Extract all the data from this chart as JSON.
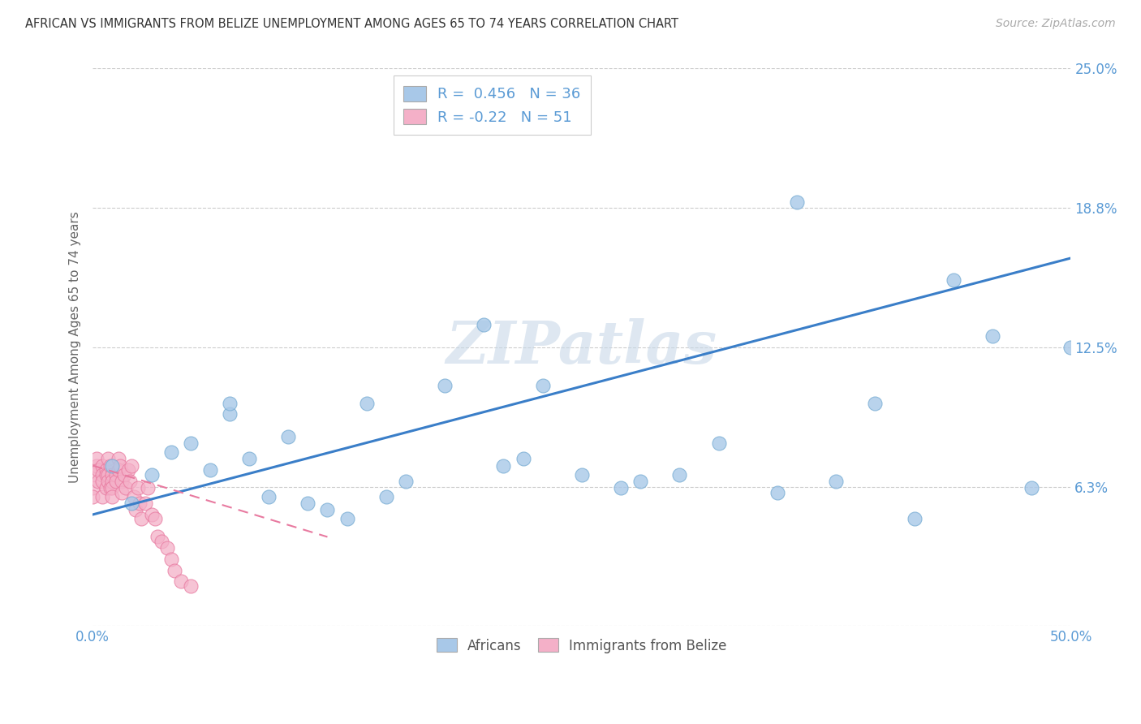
{
  "title": "AFRICAN VS IMMIGRANTS FROM BELIZE UNEMPLOYMENT AMONG AGES 65 TO 74 YEARS CORRELATION CHART",
  "source": "Source: ZipAtlas.com",
  "ylabel": "Unemployment Among Ages 65 to 74 years",
  "xlim": [
    0.0,
    0.5
  ],
  "ylim": [
    0.0,
    0.25
  ],
  "xticks": [
    0.0,
    0.1,
    0.2,
    0.3,
    0.4,
    0.5
  ],
  "xticklabels": [
    "0.0%",
    "",
    "",
    "",
    "",
    "50.0%"
  ],
  "yticks": [
    0.0,
    0.0625,
    0.125,
    0.1875,
    0.25
  ],
  "yticklabels": [
    "",
    "6.3%",
    "12.5%",
    "18.8%",
    "25.0%"
  ],
  "watermark": "ZIPatlas",
  "blue_R": 0.456,
  "blue_N": 36,
  "pink_R": -0.22,
  "pink_N": 51,
  "blue_color": "#a8c8e8",
  "pink_color": "#f4b0c8",
  "blue_edge_color": "#7aaed4",
  "pink_edge_color": "#e87aa0",
  "blue_line_color": "#3a7ec8",
  "pink_line_color": "#e87aa0",
  "tick_color": "#5b9bd5",
  "grid_color": "#cccccc",
  "title_color": "#333333",
  "africans_x": [
    0.01,
    0.02,
    0.03,
    0.04,
    0.05,
    0.06,
    0.07,
    0.07,
    0.08,
    0.09,
    0.1,
    0.11,
    0.12,
    0.13,
    0.14,
    0.15,
    0.16,
    0.18,
    0.2,
    0.21,
    0.22,
    0.23,
    0.25,
    0.27,
    0.28,
    0.3,
    0.32,
    0.35,
    0.38,
    0.4,
    0.42,
    0.44,
    0.46,
    0.48,
    0.36,
    0.5
  ],
  "africans_y": [
    0.072,
    0.055,
    0.068,
    0.078,
    0.082,
    0.07,
    0.095,
    0.1,
    0.075,
    0.058,
    0.085,
    0.055,
    0.052,
    0.048,
    0.1,
    0.058,
    0.065,
    0.108,
    0.135,
    0.072,
    0.075,
    0.108,
    0.068,
    0.062,
    0.065,
    0.068,
    0.082,
    0.06,
    0.065,
    0.1,
    0.048,
    0.155,
    0.13,
    0.062,
    0.19,
    0.125
  ],
  "belize_x": [
    0.0,
    0.0,
    0.0,
    0.002,
    0.002,
    0.003,
    0.003,
    0.005,
    0.005,
    0.005,
    0.005,
    0.007,
    0.007,
    0.007,
    0.008,
    0.008,
    0.008,
    0.009,
    0.009,
    0.01,
    0.01,
    0.01,
    0.01,
    0.012,
    0.012,
    0.013,
    0.013,
    0.014,
    0.015,
    0.015,
    0.016,
    0.017,
    0.018,
    0.019,
    0.02,
    0.021,
    0.022,
    0.023,
    0.024,
    0.025,
    0.027,
    0.028,
    0.03,
    0.032,
    0.033,
    0.035,
    0.038,
    0.04,
    0.042,
    0.045,
    0.05
  ],
  "belize_y": [
    0.068,
    0.062,
    0.058,
    0.072,
    0.075,
    0.07,
    0.065,
    0.072,
    0.068,
    0.065,
    0.058,
    0.07,
    0.068,
    0.062,
    0.075,
    0.068,
    0.065,
    0.072,
    0.062,
    0.068,
    0.065,
    0.062,
    0.058,
    0.068,
    0.065,
    0.075,
    0.07,
    0.072,
    0.065,
    0.06,
    0.068,
    0.062,
    0.07,
    0.065,
    0.072,
    0.058,
    0.052,
    0.062,
    0.055,
    0.048,
    0.055,
    0.062,
    0.05,
    0.048,
    0.04,
    0.038,
    0.035,
    0.03,
    0.025,
    0.02,
    0.018
  ],
  "blue_line_x0": 0.0,
  "blue_line_x1": 0.5,
  "blue_line_y0": 0.05,
  "blue_line_y1": 0.165,
  "pink_line_x0": 0.0,
  "pink_line_x1": 0.12,
  "pink_line_y0": 0.072,
  "pink_line_y1": 0.04
}
